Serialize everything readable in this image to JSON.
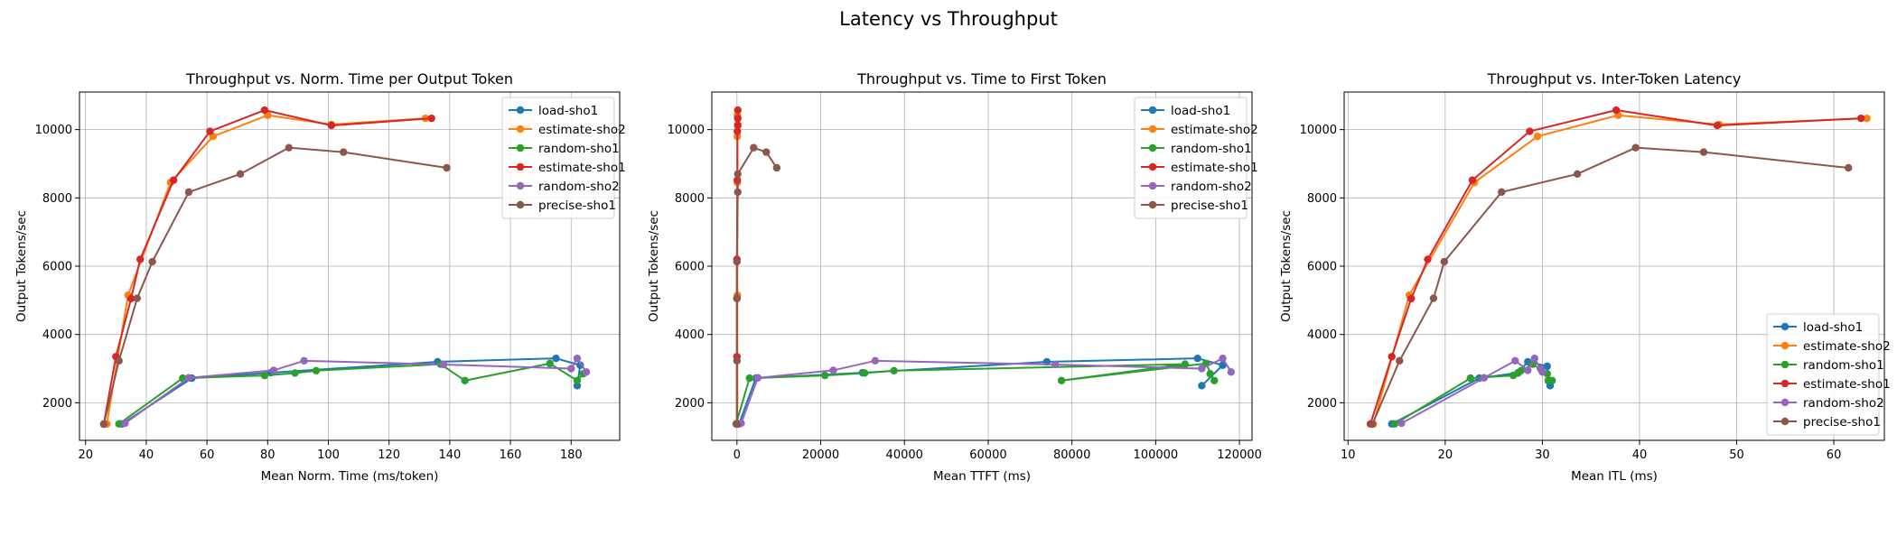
{
  "suptitle": "Latency vs Throughput",
  "colors": {
    "load-sho1": "#1f77b4",
    "estimate-sho2": "#ff7f0e",
    "random-sho1": "#2ca02c",
    "estimate-sho1": "#d62728",
    "random-sho2": "#9467bd",
    "precise-sho1": "#8c564b"
  },
  "chart_data": [
    {
      "type": "line",
      "title": "Throughput vs. Norm. Time per Output Token",
      "xlabel": "Mean Norm. Time (ms/token)",
      "ylabel": "Output Tokens/sec",
      "xlim": [
        18,
        196
      ],
      "ylim": [
        900,
        11100
      ],
      "xticks": [
        20,
        40,
        60,
        80,
        100,
        120,
        140,
        160,
        180
      ],
      "yticks": [
        2000,
        4000,
        6000,
        8000,
        10000
      ],
      "grid": true,
      "legend": "upper right",
      "series": [
        {
          "name": "load-sho1",
          "points": [
            [
              32,
              1380
            ],
            [
              55,
              2720
            ],
            [
              81,
              2880
            ],
            [
              136,
              3200
            ],
            [
              175,
              3300
            ],
            [
              183,
              3100
            ],
            [
              182,
              2500
            ]
          ]
        },
        {
          "name": "estimate-sho2",
          "points": [
            [
              27,
              1380
            ],
            [
              34,
              5150
            ],
            [
              48,
              8450
            ],
            [
              62,
              9800
            ],
            [
              80,
              10420
            ],
            [
              101,
              10150
            ],
            [
              132,
              10330
            ]
          ]
        },
        {
          "name": "random-sho1",
          "points": [
            [
              31,
              1380
            ],
            [
              52,
              2720
            ],
            [
              79,
              2800
            ],
            [
              89,
              2870
            ],
            [
              96,
              2940
            ],
            [
              137,
              3130
            ],
            [
              145,
              2650
            ],
            [
              173,
              3150
            ],
            [
              182,
              2650
            ],
            [
              184,
              2850
            ]
          ]
        },
        {
          "name": "estimate-sho1",
          "points": [
            [
              26,
              1380
            ],
            [
              30,
              3350
            ],
            [
              35,
              5050
            ],
            [
              38,
              6200
            ],
            [
              49,
              8520
            ],
            [
              61,
              9950
            ],
            [
              79,
              10570
            ],
            [
              101,
              10120
            ],
            [
              134,
              10330
            ]
          ]
        },
        {
          "name": "random-sho2",
          "points": [
            [
              33,
              1400
            ],
            [
              54,
              2730
            ],
            [
              82,
              2950
            ],
            [
              92,
              3230
            ],
            [
              138,
              3120
            ],
            [
              180,
              3000
            ],
            [
              182,
              3300
            ],
            [
              185,
              2900
            ]
          ]
        },
        {
          "name": "precise-sho1",
          "points": [
            [
              26,
              1370
            ],
            [
              31,
              3230
            ],
            [
              37,
              5060
            ],
            [
              42,
              6130
            ],
            [
              54,
              8170
            ],
            [
              71,
              8700
            ],
            [
              87,
              9470
            ],
            [
              105,
              9340
            ],
            [
              139,
              8880
            ]
          ]
        }
      ]
    },
    {
      "type": "line",
      "title": "Throughput vs. Time to First Token",
      "xlabel": "Mean TTFT (ms)",
      "ylabel": "Output Tokens/sec",
      "xlim": [
        -6000,
        123000
      ],
      "ylim": [
        900,
        11100
      ],
      "xticks": [
        0,
        20000,
        40000,
        60000,
        80000,
        100000,
        120000
      ],
      "yticks": [
        2000,
        4000,
        6000,
        8000,
        10000
      ],
      "grid": true,
      "legend": "upper right",
      "series": [
        {
          "name": "load-sho1",
          "points": [
            [
              500,
              1380
            ],
            [
              4500,
              2720
            ],
            [
              30000,
              2880
            ],
            [
              74000,
              3200
            ],
            [
              110000,
              3300
            ],
            [
              116000,
              3100
            ],
            [
              111000,
              2500
            ]
          ]
        },
        {
          "name": "estimate-sho2",
          "points": [
            [
              100,
              1380
            ],
            [
              100,
              5150
            ],
            [
              100,
              8450
            ],
            [
              100,
              9800
            ],
            [
              100,
              10420
            ],
            [
              200,
              10150
            ],
            [
              200,
              10330
            ]
          ]
        },
        {
          "name": "random-sho1",
          "points": [
            [
              -200,
              1380
            ],
            [
              3000,
              2720
            ],
            [
              21000,
              2800
            ],
            [
              30500,
              2870
            ],
            [
              37500,
              2940
            ],
            [
              107000,
              3130
            ],
            [
              77500,
              2650
            ],
            [
              112000,
              3150
            ],
            [
              114000,
              2650
            ],
            [
              113000,
              2850
            ]
          ]
        },
        {
          "name": "estimate-sho1",
          "points": [
            [
              0,
              1380
            ],
            [
              0,
              3350
            ],
            [
              0,
              5050
            ],
            [
              0,
              6200
            ],
            [
              100,
              8520
            ],
            [
              100,
              9950
            ],
            [
              200,
              10570
            ],
            [
              200,
              10120
            ],
            [
              200,
              10330
            ]
          ]
        },
        {
          "name": "random-sho2",
          "points": [
            [
              1000,
              1400
            ],
            [
              5000,
              2730
            ],
            [
              23000,
              2950
            ],
            [
              33000,
              3230
            ],
            [
              76000,
              3120
            ],
            [
              111000,
              3000
            ],
            [
              116000,
              3300
            ],
            [
              118000,
              2900
            ]
          ]
        },
        {
          "name": "precise-sho1",
          "points": [
            [
              0,
              1370
            ],
            [
              0,
              3230
            ],
            [
              0,
              5060
            ],
            [
              0,
              6130
            ],
            [
              200,
              8170
            ],
            [
              200,
              8700
            ],
            [
              4000,
              9470
            ],
            [
              7000,
              9340
            ],
            [
              9500,
              8880
            ]
          ]
        }
      ]
    },
    {
      "type": "line",
      "title": "Throughput vs. Inter-Token Latency",
      "xlabel": "Mean ITL (ms)",
      "ylabel": "Output Tokens/sec",
      "xlim": [
        9.6,
        65.2
      ],
      "ylim": [
        900,
        11100
      ],
      "xticks": [
        10,
        20,
        30,
        40,
        50,
        60
      ],
      "yticks": [
        2000,
        4000,
        6000,
        8000,
        10000
      ],
      "grid": true,
      "legend": "lower right",
      "series": [
        {
          "name": "load-sho1",
          "points": [
            [
              14.5,
              1380
            ],
            [
              23.5,
              2720
            ],
            [
              27.5,
              2880
            ],
            [
              28.5,
              3200
            ],
            [
              30.5,
              3070
            ],
            [
              30.8,
              2500
            ]
          ]
        },
        {
          "name": "estimate-sho2",
          "points": [
            [
              12.6,
              1380
            ],
            [
              16.3,
              5150
            ],
            [
              23,
              8450
            ],
            [
              29.5,
              9800
            ],
            [
              37.8,
              10420
            ],
            [
              48.2,
              10150
            ],
            [
              63.4,
              10330
            ]
          ]
        },
        {
          "name": "random-sho1",
          "points": [
            [
              14.8,
              1380
            ],
            [
              22.6,
              2720
            ],
            [
              27,
              2800
            ],
            [
              27.5,
              2870
            ],
            [
              27.8,
              2940
            ],
            [
              29,
              3130
            ],
            [
              30.5,
              2850
            ],
            [
              31,
              2650
            ],
            [
              30.6,
              2650
            ]
          ]
        },
        {
          "name": "estimate-sho1",
          "points": [
            [
              12.3,
              1380
            ],
            [
              14.5,
              3350
            ],
            [
              16.5,
              5050
            ],
            [
              18.2,
              6200
            ],
            [
              22.8,
              8520
            ],
            [
              28.7,
              9950
            ],
            [
              37.6,
              10570
            ],
            [
              48,
              10120
            ],
            [
              62.8,
              10330
            ]
          ]
        },
        {
          "name": "random-sho2",
          "points": [
            [
              15.5,
              1400
            ],
            [
              24,
              2730
            ],
            [
              27.2,
              3230
            ],
            [
              28.5,
              2950
            ],
            [
              29.2,
              3300
            ],
            [
              29.8,
              3000
            ],
            [
              30,
              2900
            ]
          ]
        },
        {
          "name": "precise-sho1",
          "points": [
            [
              12.5,
              1370
            ],
            [
              15.3,
              3230
            ],
            [
              18.8,
              5060
            ],
            [
              19.9,
              6130
            ],
            [
              25.8,
              8170
            ],
            [
              33.6,
              8700
            ],
            [
              39.6,
              9470
            ],
            [
              46.6,
              9340
            ],
            [
              61.5,
              8880
            ]
          ]
        }
      ]
    }
  ]
}
